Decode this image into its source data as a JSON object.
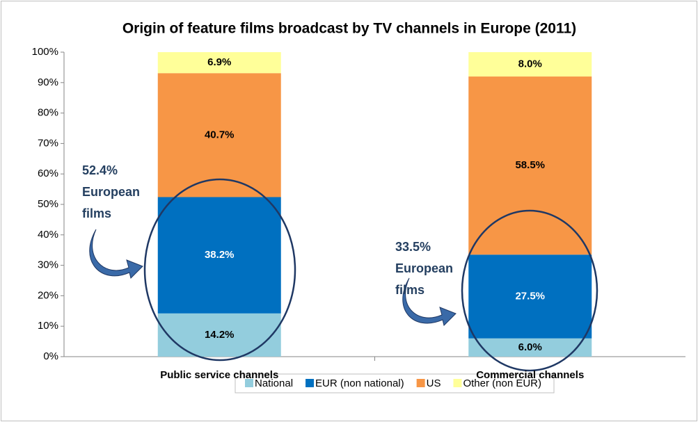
{
  "chart_data": {
    "type": "stacked_bar",
    "title": "Origin of feature films broadcast by TV channels in Europe (2011)",
    "categories": [
      "Public service channels",
      "Commercial channels"
    ],
    "series": [
      {
        "name": "National",
        "color": "#93cddd",
        "values": [
          14.2,
          6.0
        ],
        "value_labels": [
          "14.2%",
          "6.0%"
        ]
      },
      {
        "name": "EUR (non national)",
        "color": "#0070c0",
        "values": [
          38.2,
          27.5
        ],
        "value_labels": [
          "38.2%",
          "27.5%"
        ]
      },
      {
        "name": "US",
        "color": "#f79646",
        "values": [
          40.7,
          58.5
        ],
        "value_labels": [
          "40.7%",
          "58.5%"
        ]
      },
      {
        "name": "Other (non EUR)",
        "color": "#ffff99",
        "values": [
          6.9,
          8.0
        ],
        "value_labels": [
          "6.9%",
          "8.0%"
        ]
      }
    ],
    "ylim": [
      0,
      100
    ],
    "yticks": [
      {
        "value": 0,
        "label": "0%"
      },
      {
        "value": 10,
        "label": "10%"
      },
      {
        "value": 20,
        "label": "20%"
      },
      {
        "value": 30,
        "label": "30%"
      },
      {
        "value": 40,
        "label": "40%"
      },
      {
        "value": 50,
        "label": "50%"
      },
      {
        "value": 60,
        "label": "60%"
      },
      {
        "value": 70,
        "label": "70%"
      },
      {
        "value": 80,
        "label": "80%"
      },
      {
        "value": 90,
        "label": "90%"
      },
      {
        "value": 100,
        "label": "100%"
      }
    ],
    "annotations": [
      [
        "52.4%",
        "European",
        "films"
      ],
      [
        "33.5%",
        "European",
        "films"
      ]
    ],
    "legend": "bottom"
  }
}
